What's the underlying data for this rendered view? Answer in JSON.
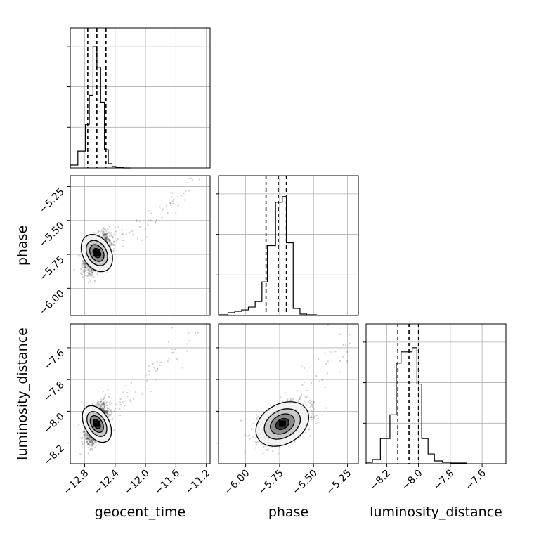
{
  "chart_data": {
    "type": "corner",
    "parameters": [
      "geocent_time",
      "phase",
      "luminosity_distance"
    ],
    "grid": true,
    "panels": {
      "geocent_time": {
        "range": [
          -12.99,
          -11.15
        ],
        "ticks": [
          "−12.8",
          "−12.4",
          "−12.0",
          "−11.6",
          "−11.2"
        ],
        "tick_values": [
          -12.8,
          -12.4,
          -12.0,
          -11.6,
          -11.2
        ],
        "quantiles": [
          -12.76,
          -12.64,
          -12.52
        ],
        "hist_bins": [
          -12.99,
          -12.89,
          -12.79,
          -12.74,
          -12.69,
          -12.64,
          -12.59,
          -12.54,
          -12.49,
          -12.44,
          -12.39,
          -12.29,
          -12.19
        ],
        "hist_counts": [
          0.02,
          0.12,
          0.31,
          0.52,
          0.87,
          0.72,
          0.47,
          0.13,
          0.03,
          0.01,
          0.005,
          0
        ]
      },
      "phase": {
        "range": [
          -6.2,
          -5.17
        ],
        "ticks": [
          "−6.00",
          "−5.75",
          "−5.50",
          "−5.25"
        ],
        "tick_values": [
          -6.0,
          -5.75,
          -5.5,
          -5.25
        ],
        "quantiles": [
          -5.85,
          -5.76,
          -5.7
        ],
        "hist_bins": [
          -6.2,
          -6.13,
          -6.08,
          -6.03,
          -5.98,
          -5.93,
          -5.88,
          -5.84,
          -5.78,
          -5.73,
          -5.7,
          -5.65,
          -5.6,
          -5.55,
          -5.48
        ],
        "hist_counts": [
          0.005,
          0.02,
          0.03,
          0.04,
          0.06,
          0.1,
          0.24,
          0.5,
          0.81,
          0.85,
          0.52,
          0.05,
          0.01,
          0.005
        ]
      },
      "luminosity_distance": {
        "range": [
          -8.33,
          -7.45
        ],
        "ticks": [
          "−8.2",
          "−8.0",
          "−7.8",
          "−7.6"
        ],
        "tick_values": [
          -8.2,
          -8.0,
          -7.8,
          -7.6
        ],
        "quantiles": [
          -8.13,
          -8.06,
          -8.0
        ],
        "hist_bins": [
          -8.33,
          -8.29,
          -8.24,
          -8.18,
          -8.14,
          -8.11,
          -8.04,
          -8.01,
          -7.98,
          -7.94,
          -7.9,
          -7.85,
          -7.8,
          -7.7
        ],
        "hist_counts": [
          0.01,
          0.03,
          0.18,
          0.35,
          0.72,
          0.8,
          0.83,
          0.57,
          0.18,
          0.07,
          0.02,
          0.01,
          0.005
        ]
      }
    },
    "pairs": [
      {
        "x": "geocent_time",
        "y": "phase",
        "center": [
          -12.64,
          -5.74
        ],
        "spread": [
          0.08,
          0.07
        ],
        "corr": 0.5
      },
      {
        "x": "geocent_time",
        "y": "luminosity_distance",
        "center": [
          -12.64,
          -8.08
        ],
        "spread": [
          0.07,
          0.06
        ],
        "corr": 0.55
      },
      {
        "x": "phase",
        "y": "luminosity_distance",
        "center": [
          -5.73,
          -8.08
        ],
        "spread": [
          0.09,
          0.06
        ],
        "corr": 0.45
      }
    ]
  }
}
